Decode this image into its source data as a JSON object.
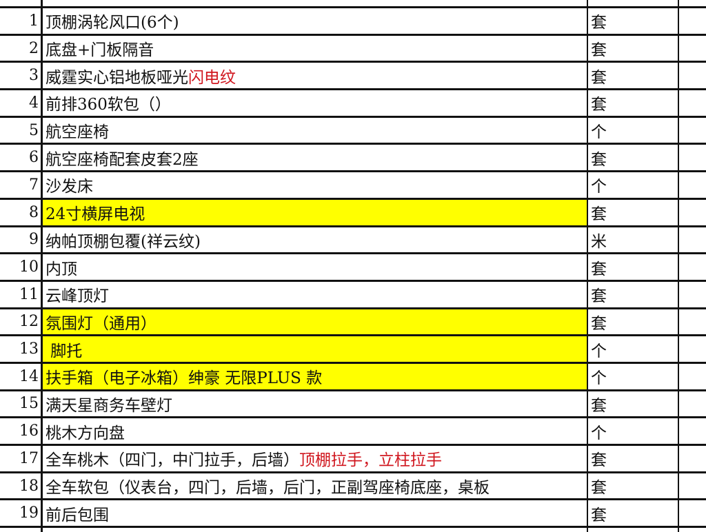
{
  "table": {
    "highlight_color": "#ffff00",
    "accent_text_color": "#d0161e",
    "rows": [
      {
        "no": "1",
        "item": "顶棚涡轮风口(6个)",
        "extra": "",
        "unit": "套",
        "highlight": false
      },
      {
        "no": "2",
        "item": "底盘+门板隔音",
        "extra": "",
        "unit": "套",
        "highlight": false
      },
      {
        "no": "3",
        "item": "威霆实心铝地板哑光",
        "extra": "闪电纹",
        "unit": "套",
        "highlight": false
      },
      {
        "no": "4",
        "item": "前排360软包（）",
        "extra": "",
        "unit": "套",
        "highlight": false
      },
      {
        "no": "5",
        "item": "航空座椅",
        "extra": "",
        "unit": "个",
        "highlight": false
      },
      {
        "no": "6",
        "item": "航空座椅配套皮套2座",
        "extra": "",
        "unit": "套",
        "highlight": false
      },
      {
        "no": "7",
        "item": "沙发床",
        "extra": "",
        "unit": "个",
        "highlight": false
      },
      {
        "no": "8",
        "item": "24寸横屏电视",
        "extra": "",
        "unit": "套",
        "highlight": true
      },
      {
        "no": "9",
        "item": "纳帕顶棚包覆(祥云纹)",
        "extra": "",
        "unit": "米",
        "highlight": false
      },
      {
        "no": "10",
        "item": "内顶",
        "extra": "",
        "unit": "套",
        "highlight": false
      },
      {
        "no": "11",
        "item": "云峰顶灯",
        "extra": "",
        "unit": "套",
        "highlight": false
      },
      {
        "no": "12",
        "item": "氛围灯（通用）",
        "extra": "",
        "unit": "套",
        "highlight": true
      },
      {
        "no": "13",
        "item": " 脚托",
        "extra": "",
        "unit": "个",
        "highlight": true
      },
      {
        "no": "14",
        "item": "扶手箱（电子冰箱）绅豪 无限PLUS 款",
        "extra": "",
        "unit": "个",
        "highlight": true
      },
      {
        "no": "15",
        "item": "满天星商务车壁灯",
        "extra": "",
        "unit": "套",
        "highlight": false
      },
      {
        "no": "16",
        "item": "桃木方向盘",
        "extra": "",
        "unit": "个",
        "highlight": false
      },
      {
        "no": "17",
        "item": "全车桃木（四门，中门拉手，后墙）",
        "extra": "顶棚拉手，立柱拉手",
        "unit": "套",
        "highlight": false
      },
      {
        "no": "18",
        "item": "全车软包（仪表台，四门，后墙，后门，正副驾座椅底座，桌板",
        "extra": "",
        "unit": "套",
        "highlight": false
      },
      {
        "no": "19",
        "item": "前后包围",
        "extra": "",
        "unit": "套",
        "highlight": false
      }
    ]
  }
}
